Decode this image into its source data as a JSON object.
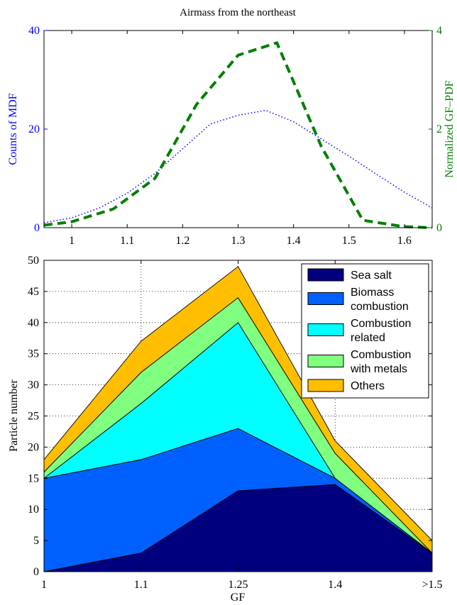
{
  "chart_data": [
    {
      "type": "line",
      "title": "Airmass from the northeast",
      "xlim": [
        0.95,
        1.65
      ],
      "xticks": [
        "1",
        "1.1",
        "1.2",
        "1.3",
        "1.4",
        "1.5",
        "1.6"
      ],
      "xtick_values": [
        1.0,
        1.1,
        1.2,
        1.3,
        1.4,
        1.5,
        1.6
      ],
      "y_left": {
        "label": "Counts of MDF",
        "lim": [
          0,
          40
        ],
        "ticks": [
          "0",
          "20",
          "40"
        ],
        "tick_values": [
          0,
          20,
          40
        ],
        "color": "#0000ff"
      },
      "y_right": {
        "label": "Normalized GF–PDF",
        "lim": [
          0,
          4
        ],
        "ticks": [
          "0",
          "2",
          "4"
        ],
        "tick_values": [
          0,
          2,
          4
        ],
        "color": "#007f00"
      },
      "series": [
        {
          "axis": "left",
          "style": "dotted",
          "color": "#0000ff",
          "x": [
            0.95,
            1.0,
            1.05,
            1.1,
            1.15,
            1.2,
            1.25,
            1.3,
            1.35,
            1.4,
            1.45,
            1.5,
            1.55,
            1.6,
            1.65
          ],
          "y": [
            1,
            2,
            4,
            7,
            11,
            16,
            21,
            22.8,
            23.8,
            21.5,
            18,
            14.5,
            10.8,
            7.2,
            4
          ]
        },
        {
          "axis": "right",
          "style": "dashed",
          "color": "#007f00",
          "x": [
            0.95,
            1.0,
            1.075,
            1.15,
            1.225,
            1.3,
            1.37,
            1.45,
            1.525,
            1.6,
            1.65
          ],
          "y": [
            0.05,
            0.12,
            0.38,
            1.0,
            2.5,
            3.5,
            3.75,
            1.65,
            0.15,
            0.02,
            0.0
          ]
        }
      ]
    },
    {
      "type": "area",
      "stacked": true,
      "xlabel": "GF",
      "ylabel": "Particle number",
      "categories": [
        "1",
        "1.1",
        "1.25",
        "1.4",
        ">1.5"
      ],
      "ylim": [
        0,
        50
      ],
      "yticks": [
        "0",
        "5",
        "10",
        "15",
        "20",
        "25",
        "30",
        "35",
        "40",
        "45",
        "50"
      ],
      "ytick_values": [
        0,
        5,
        10,
        15,
        20,
        25,
        30,
        35,
        40,
        45,
        50
      ],
      "grid": true,
      "legend_position": "top-right",
      "series": [
        {
          "name": "Sea salt",
          "label_lines": [
            "Sea salt"
          ],
          "color": "#00007f",
          "values": [
            0,
            3,
            13,
            14,
            3
          ]
        },
        {
          "name": "Biomass combustion",
          "label_lines": [
            "Biomass",
            "combustion"
          ],
          "color": "#0060ff",
          "values": [
            15,
            15,
            10,
            1,
            0
          ]
        },
        {
          "name": "Combustion related",
          "label_lines": [
            "Combustion",
            "related"
          ],
          "color": "#00ffff",
          "values": [
            0,
            9,
            17,
            0,
            0
          ]
        },
        {
          "name": "Combustion with metals",
          "label_lines": [
            "Combustion",
            "with metals"
          ],
          "color": "#80ff80",
          "values": [
            1,
            5,
            4,
            4,
            0
          ]
        },
        {
          "name": "Others",
          "label_lines": [
            "Others"
          ],
          "color": "#ffbf00",
          "values": [
            2,
            5,
            5,
            2,
            2
          ]
        }
      ]
    }
  ]
}
